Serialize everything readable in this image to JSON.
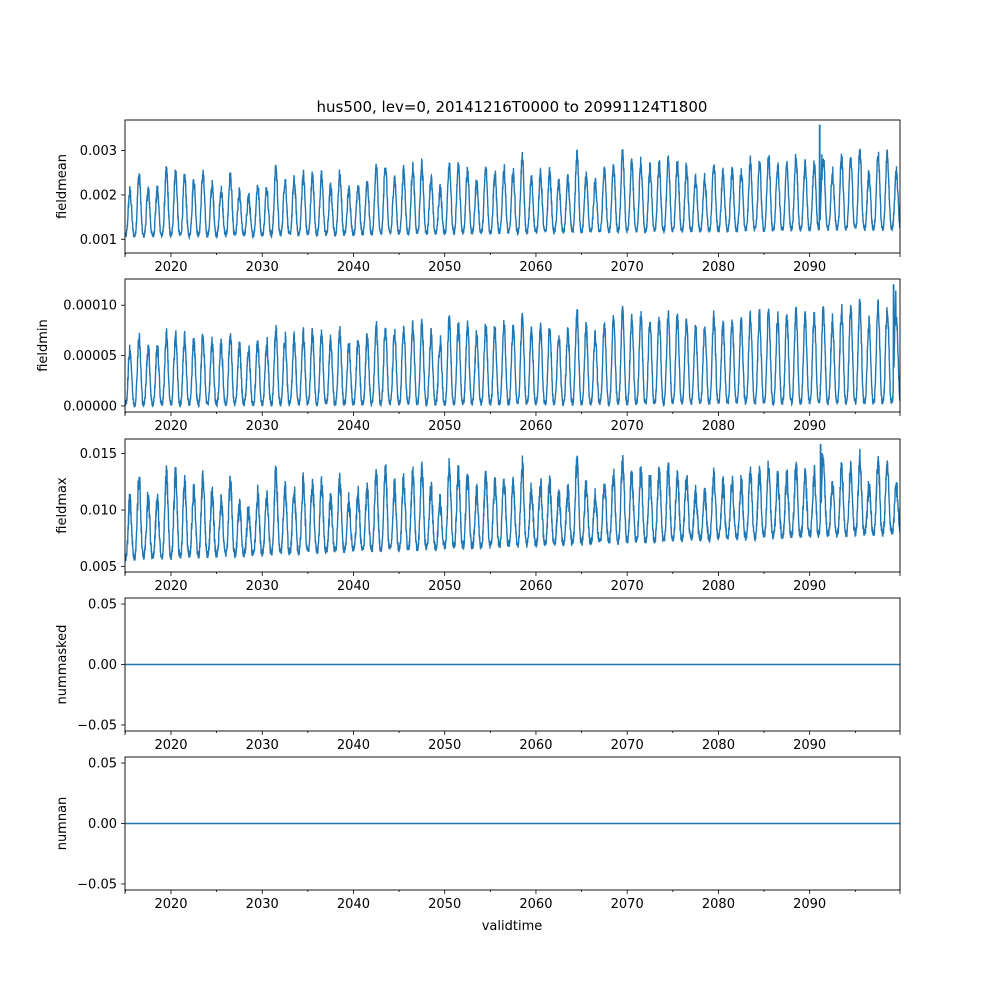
{
  "figure": {
    "title": "hus500, lev=0, 20141216T0000 to 20991124T1800",
    "xlabel": "validtime",
    "line_color": "#1f77b4"
  },
  "chart_data": [
    {
      "type": "line",
      "name": "fieldmean",
      "ylabel": "fieldmean",
      "xlim": [
        2014.96,
        2099.9
      ],
      "ylim": [
        0.00069,
        0.00369
      ],
      "x_ticks": [
        2020,
        2030,
        2040,
        2050,
        2060,
        2070,
        2080,
        2090
      ],
      "y_ticks": [
        0.001,
        0.002,
        0.003
      ],
      "y_tick_labels": [
        "0.001",
        "0.002",
        "0.003"
      ],
      "grid": false,
      "seasonal": {
        "start_base": 0.00108,
        "end_base": 0.00125,
        "start_peak": 0.0022,
        "end_peak": 0.0028,
        "noise": 0.0002,
        "max_peak": 0.00357,
        "max_peak_year": 2091.1
      }
    },
    {
      "type": "line",
      "name": "fieldmin",
      "ylabel": "fieldmin",
      "xlim": [
        2014.96,
        2099.9
      ],
      "ylim": [
        -6e-06,
        0.000126
      ],
      "x_ticks": [
        2020,
        2030,
        2040,
        2050,
        2060,
        2070,
        2080,
        2090
      ],
      "y_ticks": [
        0.0,
        5e-05,
        0.0001
      ],
      "y_tick_labels": [
        "0.00000",
        "0.00005",
        "0.00010"
      ],
      "grid": false,
      "seasonal": {
        "start_base": 2e-06,
        "end_base": 4e-06,
        "start_peak": 6e-05,
        "end_peak": 9.5e-05,
        "noise": 1e-05,
        "max_peak": 0.00012,
        "max_peak_year": 2099.2
      }
    },
    {
      "type": "line",
      "name": "fieldmax",
      "ylabel": "fieldmax",
      "xlim": [
        2014.96,
        2099.9
      ],
      "ylim": [
        0.0045,
        0.0163
      ],
      "x_ticks": [
        2020,
        2030,
        2040,
        2050,
        2060,
        2070,
        2080,
        2090
      ],
      "y_ticks": [
        0.005,
        0.01,
        0.015
      ],
      "y_tick_labels": [
        "0.005",
        "0.010",
        "0.015"
      ],
      "grid": false,
      "seasonal": {
        "start_base": 0.0058,
        "end_base": 0.0081,
        "start_peak": 0.0115,
        "end_peak": 0.0135,
        "noise": 0.0012,
        "max_peak": 0.0158,
        "max_peak_year": 2091.2
      }
    },
    {
      "type": "line",
      "name": "nummasked",
      "ylabel": "nummasked",
      "xlim": [
        2014.96,
        2099.9
      ],
      "ylim": [
        -0.055,
        0.055
      ],
      "x_ticks": [
        2020,
        2030,
        2040,
        2050,
        2060,
        2070,
        2080,
        2090
      ],
      "y_ticks": [
        -0.05,
        0.0,
        0.05
      ],
      "y_tick_labels": [
        "−0.05",
        "0.00",
        "0.05"
      ],
      "grid": false,
      "constant": 0
    },
    {
      "type": "line",
      "name": "numnan",
      "ylabel": "numnan",
      "xlim": [
        2014.96,
        2099.9
      ],
      "ylim": [
        -0.055,
        0.055
      ],
      "x_ticks": [
        2020,
        2030,
        2040,
        2050,
        2060,
        2070,
        2080,
        2090
      ],
      "y_ticks": [
        -0.05,
        0.0,
        0.05
      ],
      "y_tick_labels": [
        "−0.05",
        "0.00",
        "0.05"
      ],
      "grid": false,
      "constant": 0
    }
  ]
}
